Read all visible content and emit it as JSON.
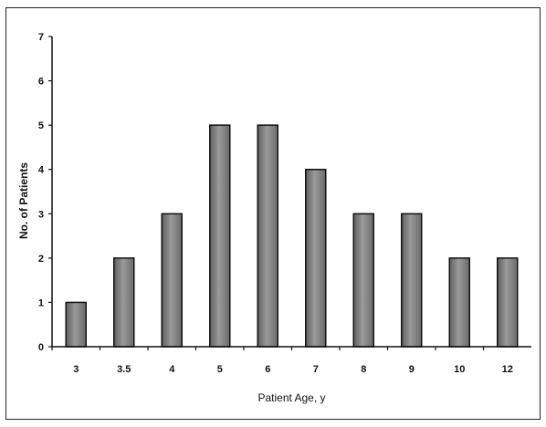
{
  "chart_data": {
    "type": "bar",
    "title": "",
    "xlabel": "Patient Age, y",
    "ylabel": "No. of Patients",
    "categories": [
      "3",
      "3.5",
      "4",
      "5",
      "6",
      "7",
      "8",
      "9",
      "10",
      "12"
    ],
    "values": [
      1,
      2,
      3,
      5,
      5,
      4,
      3,
      3,
      2,
      2
    ],
    "ylim": [
      0,
      7
    ],
    "yticks": [
      "0",
      "1",
      "2",
      "3",
      "4",
      "5",
      "6",
      "7"
    ],
    "grid": false,
    "legend": "none",
    "bar_color": "#7a7a7a",
    "bar_edge_color": "#111111"
  }
}
